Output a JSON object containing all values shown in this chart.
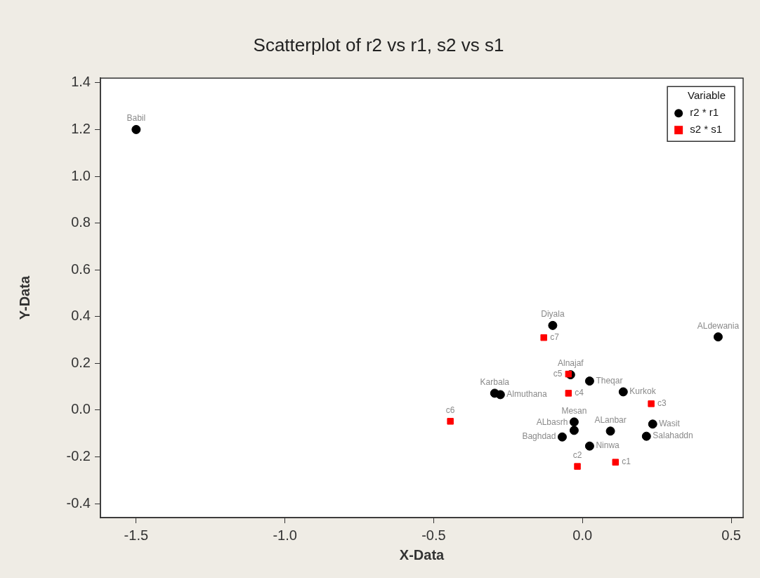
{
  "chart_data": {
    "type": "scatter",
    "title": "Scatterplot of r2 vs r1, s2 vs s1",
    "xlabel": "X-Data",
    "ylabel": "Y-Data",
    "legend_title": "Variable",
    "legend": "top right",
    "grid": false,
    "xlim": [
      -1.62,
      0.54
    ],
    "xticks": [
      {
        "value": -1.5,
        "label": "-1.5"
      },
      {
        "value": -1,
        "label": "-1.0"
      },
      {
        "value": -0.5,
        "label": "-0.5"
      },
      {
        "value": 0,
        "label": "0.0"
      },
      {
        "value": 0.5,
        "label": "0.5"
      }
    ],
    "ylim": [
      -0.46,
      1.42
    ],
    "yticks": [
      {
        "value": -0.4,
        "label": "-0.4"
      },
      {
        "value": -0.2,
        "label": "-0.2"
      },
      {
        "value": 0,
        "label": "0.0"
      },
      {
        "value": 0.2,
        "label": "0.2"
      },
      {
        "value": 0.4,
        "label": "0.4"
      },
      {
        "value": 0.6,
        "label": "0.6"
      },
      {
        "value": 0.8,
        "label": "0.8"
      },
      {
        "value": 1,
        "label": "1.0"
      },
      {
        "value": 1.2,
        "label": "1.2"
      },
      {
        "value": 1.4,
        "label": "1.4"
      }
    ],
    "series": [
      {
        "name": "r2 * r1",
        "color": "#000000",
        "marker": "circle",
        "x": [
          -1.5,
          -0.1,
          0.456,
          -0.04,
          0.024,
          0.137,
          -0.295,
          -0.276,
          -0.028,
          -0.028,
          -0.068,
          0.094,
          0.024,
          0.236,
          0.215
        ],
        "values": [
          1.2,
          0.362,
          0.313,
          0.151,
          0.124,
          0.078,
          0.072,
          0.066,
          -0.051,
          -0.087,
          -0.115,
          -0.09,
          -0.154,
          -0.06,
          -0.112
        ]
      },
      {
        "name": "s2 * s1",
        "color": "#ff0000",
        "marker": "square",
        "x": [
          -0.13,
          -0.047,
          -0.047,
          0.231,
          -0.444,
          -0.017,
          0.111
        ],
        "values": [
          0.31,
          0.154,
          0.072,
          0.027,
          -0.048,
          -0.241,
          -0.223
        ]
      }
    ],
    "annotations": [
      {
        "text": "Babil",
        "x": -1.5,
        "y": 1.2
      },
      {
        "text": "Diyala",
        "x": -0.1,
        "y": 0.362
      },
      {
        "text": "ALdewania",
        "x": 0.456,
        "y": 0.313
      },
      {
        "text": "Alnajaf",
        "x": -0.04,
        "y": 0.151
      },
      {
        "text": "Theqar",
        "x": 0.024,
        "y": 0.124
      },
      {
        "text": "Kurkok",
        "x": 0.137,
        "y": 0.078
      },
      {
        "text": "Karbala",
        "x": -0.295,
        "y": 0.072
      },
      {
        "text": "Almuthana",
        "x": -0.276,
        "y": 0.066
      },
      {
        "text": "Mesan",
        "x": -0.028,
        "y": -0.051
      },
      {
        "text": "ALbasrh",
        "x": -0.028,
        "y": -0.087
      },
      {
        "text": "Baghdad",
        "x": -0.068,
        "y": -0.115
      },
      {
        "text": "ALanbar",
        "x": 0.094,
        "y": -0.09
      },
      {
        "text": "Ninwa",
        "x": 0.024,
        "y": -0.154
      },
      {
        "text": "Wasit",
        "x": 0.236,
        "y": -0.06
      },
      {
        "text": "Salahaddn",
        "x": 0.215,
        "y": -0.112
      },
      {
        "text": "c7",
        "x": -0.13,
        "y": 0.31
      },
      {
        "text": "c5",
        "x": -0.047,
        "y": 0.154
      },
      {
        "text": "c4",
        "x": -0.047,
        "y": 0.072
      },
      {
        "text": "c3",
        "x": 0.231,
        "y": 0.027
      },
      {
        "text": "c6",
        "x": -0.444,
        "y": -0.048
      },
      {
        "text": "c2",
        "x": -0.017,
        "y": -0.241
      },
      {
        "text": "c1",
        "x": 0.111,
        "y": -0.223
      }
    ]
  }
}
